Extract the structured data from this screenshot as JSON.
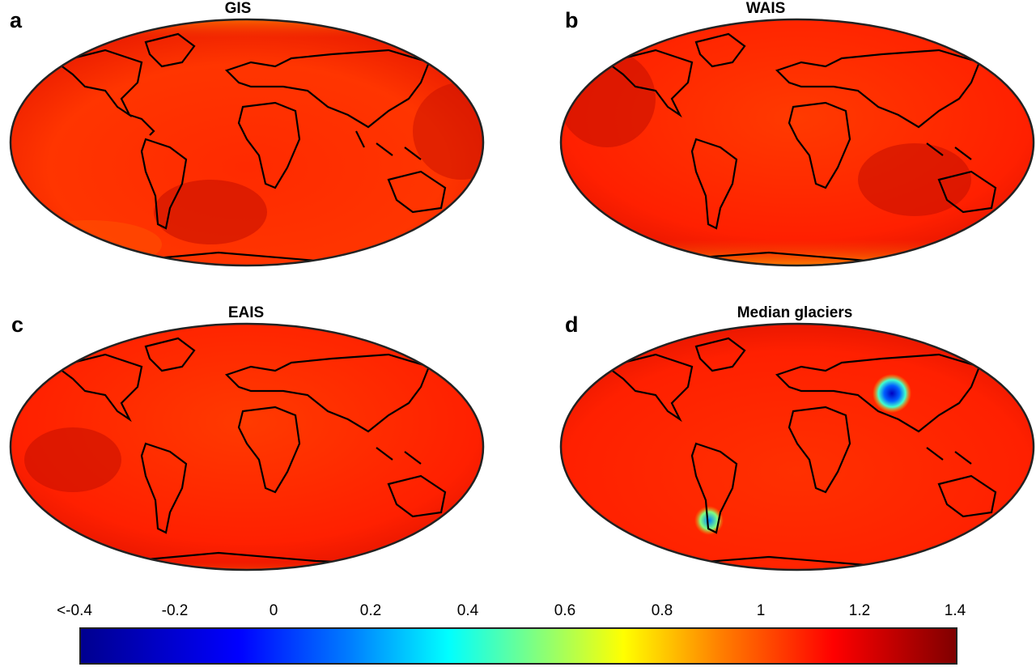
{
  "panels": [
    {
      "letter": "a",
      "title": "GIS",
      "icon": "world-map-icon"
    },
    {
      "letter": "b",
      "title": "WAIS",
      "icon": "world-map-icon"
    },
    {
      "letter": "c",
      "title": "EAIS",
      "icon": "world-map-icon"
    },
    {
      "letter": "d",
      "title": "Median glaciers",
      "icon": "world-map-icon"
    }
  ],
  "colorbar": {
    "ticks": [
      "<-0.4",
      "-0.2",
      "0",
      "0.2",
      "0.4",
      "0.6",
      "0.8",
      "1",
      "1.2",
      "1.4"
    ],
    "range": [
      -0.4,
      1.4
    ],
    "colormap": [
      "#00008f",
      "#0000ff",
      "#0080ff",
      "#00ffff",
      "#80ff80",
      "#ffff00",
      "#ff8000",
      "#ff0000",
      "#800000"
    ]
  }
}
